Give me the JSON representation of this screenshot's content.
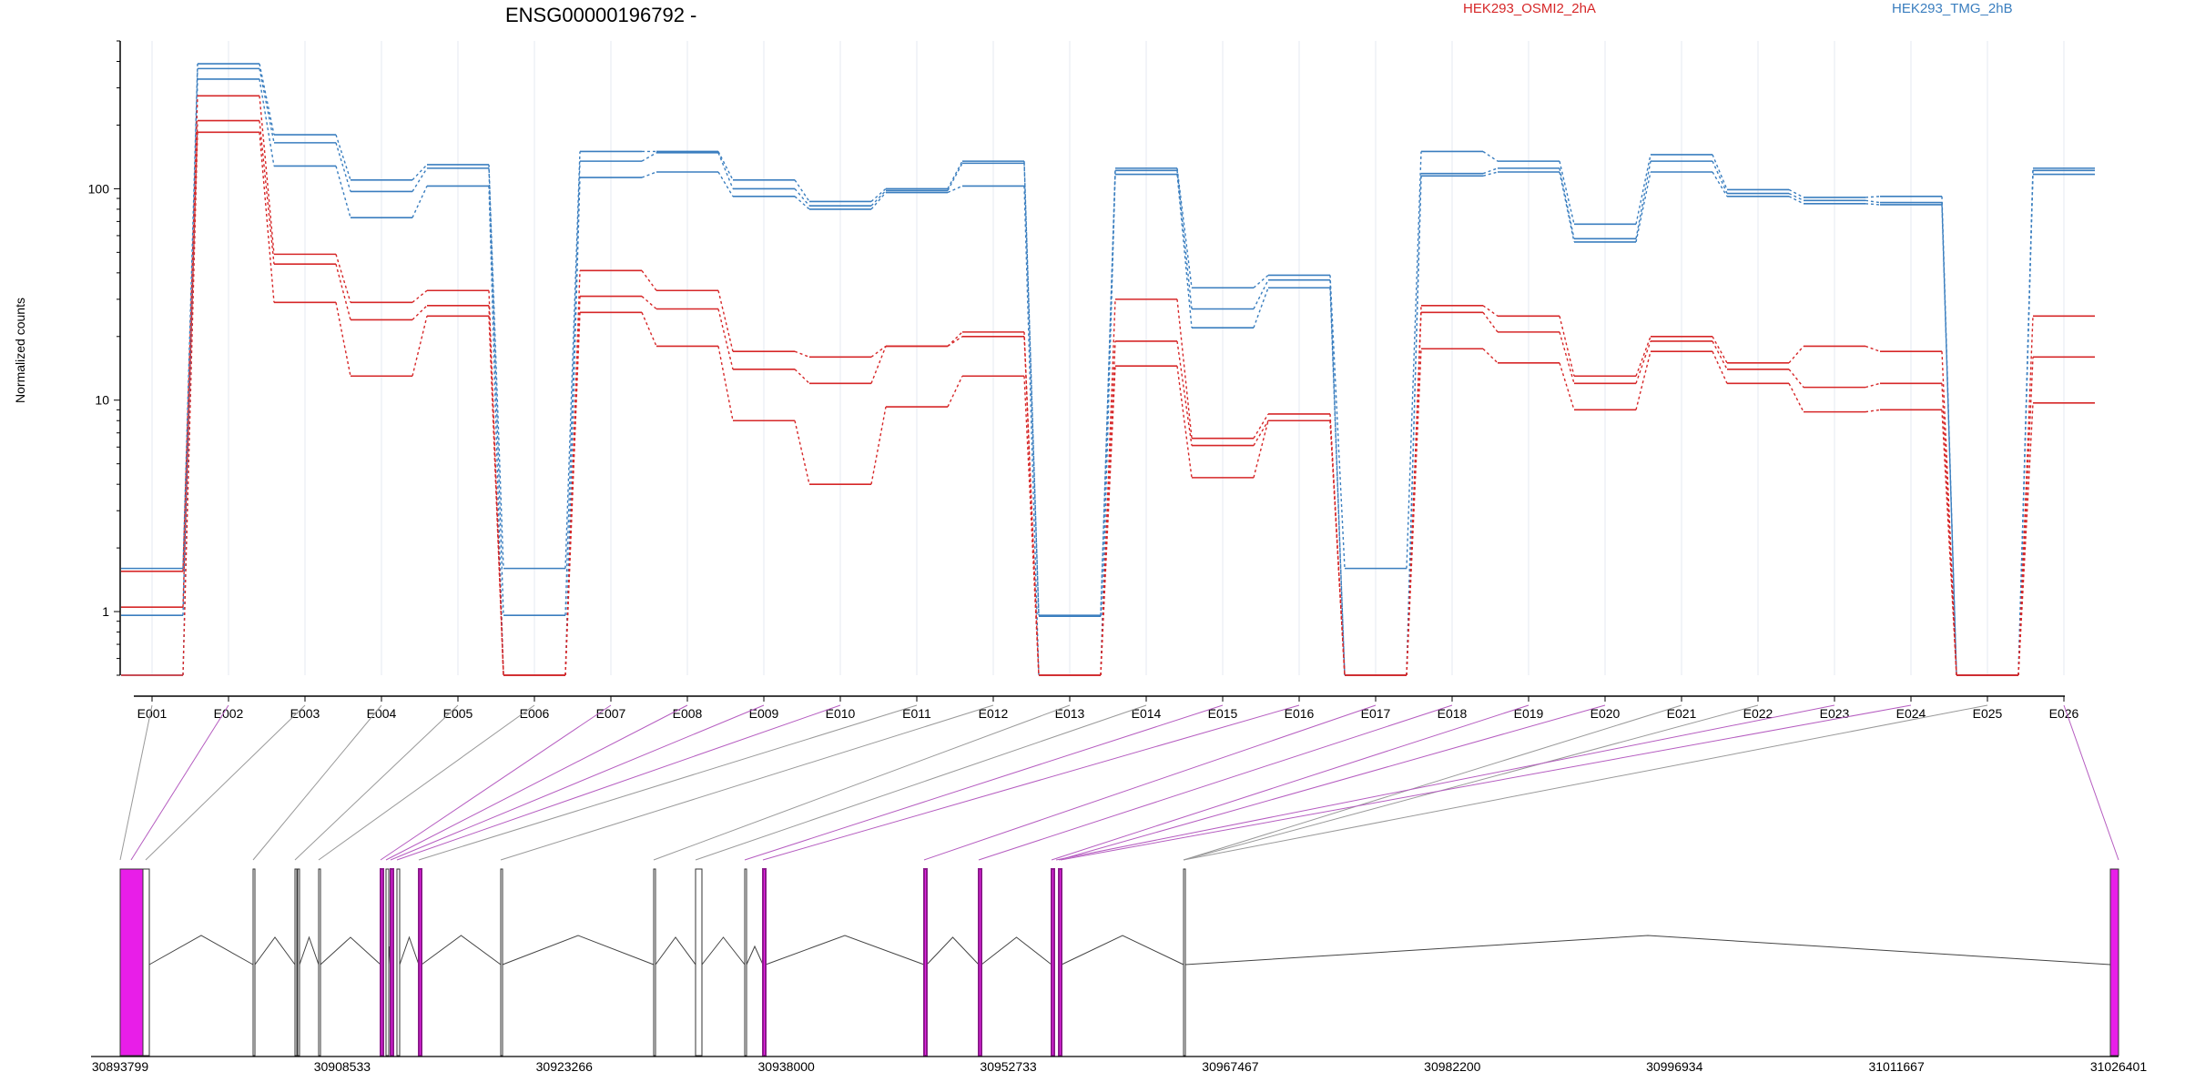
{
  "chart_data": {
    "type": "line",
    "title": "ENSG00000196792 -",
    "ylabel": "Normalized counts",
    "yscale": "log",
    "ylim": [
      0.5,
      500
    ],
    "yticks": [
      1,
      10,
      100
    ],
    "ytick_labels": [
      "1",
      "10",
      "100"
    ],
    "categories": [
      "E001",
      "E002",
      "E003",
      "E004",
      "E005",
      "E006",
      "E007",
      "E008",
      "E009",
      "E010",
      "E011",
      "E012",
      "E013",
      "E014",
      "E015",
      "E016",
      "E017",
      "E018",
      "E019",
      "E020",
      "E021",
      "E022",
      "E023",
      "E024",
      "E025",
      "E026"
    ],
    "legend": [
      {
        "name": "HEK293_OSMI2_2hA",
        "color": "#d62728"
      },
      {
        "name": "HEK293_TMG_2hB",
        "color": "#3a7ebf"
      }
    ],
    "series": [
      {
        "name": "HEK293_TMG_2hB",
        "color": "#3a7ebf",
        "values": [
          1.6,
          390,
          180,
          110,
          130,
          1.6,
          150,
          150,
          110,
          87,
          100,
          135,
          0.96,
          125,
          34,
          39,
          1.6,
          150,
          135,
          68,
          145,
          99,
          91,
          92,
          0.5,
          125
        ]
      },
      {
        "name": "HEK293_TMG_2hB",
        "color": "#3a7ebf",
        "values": [
          0.96,
          370,
          165,
          97,
          125,
          0.96,
          135,
          148,
          100,
          83,
          98,
          132,
          0.95,
          122,
          27,
          37,
          0.5,
          118,
          125,
          58,
          135,
          95,
          88,
          86,
          0.5,
          122
        ]
      },
      {
        "name": "HEK293_TMG_2hB",
        "color": "#3a7ebf",
        "values": [
          0.5,
          330,
          128,
          73,
          103,
          0.5,
          113,
          120,
          92,
          80,
          96,
          103,
          0.5,
          117,
          22,
          34,
          0.5,
          115,
          120,
          56,
          120,
          92,
          85,
          84,
          0.5,
          117
        ]
      },
      {
        "name": "HEK293_OSMI2_2hA",
        "color": "#d62728",
        "values": [
          1.55,
          275,
          49,
          29,
          33,
          0.5,
          41,
          33,
          17,
          16,
          18,
          21,
          0.5,
          30,
          6.6,
          8.6,
          0.5,
          28,
          25,
          13,
          20,
          15,
          18,
          17,
          0.5,
          25
        ]
      },
      {
        "name": "HEK293_OSMI2_2hA",
        "color": "#d62728",
        "values": [
          1.05,
          210,
          44,
          24,
          28,
          0.5,
          31,
          27,
          14,
          12,
          18,
          20,
          0.5,
          19,
          6.1,
          8.0,
          0.5,
          26,
          21,
          12,
          19,
          14,
          11.5,
          12,
          0.5,
          16
        ]
      },
      {
        "name": "HEK293_OSMI2_2hA",
        "color": "#d62728",
        "values": [
          0.5,
          185,
          29,
          13,
          25,
          0.5,
          26,
          18,
          8,
          4,
          9.3,
          13,
          0.5,
          14.5,
          4.3,
          8.0,
          0.5,
          17.5,
          15,
          9,
          17,
          12,
          8.8,
          9,
          0.5,
          9.7
        ]
      }
    ],
    "genome_axis": {
      "tick_labels": [
        "30893799",
        "30908533",
        "30923266",
        "30938000",
        "30952733",
        "30967467",
        "30982200",
        "30996934",
        "31011667",
        "31026401"
      ]
    },
    "gene_model": {
      "exon_color": "#e81ee8",
      "differential_color": "#8c1a8c",
      "connector_colors": [
        "grey",
        "purple"
      ]
    }
  }
}
